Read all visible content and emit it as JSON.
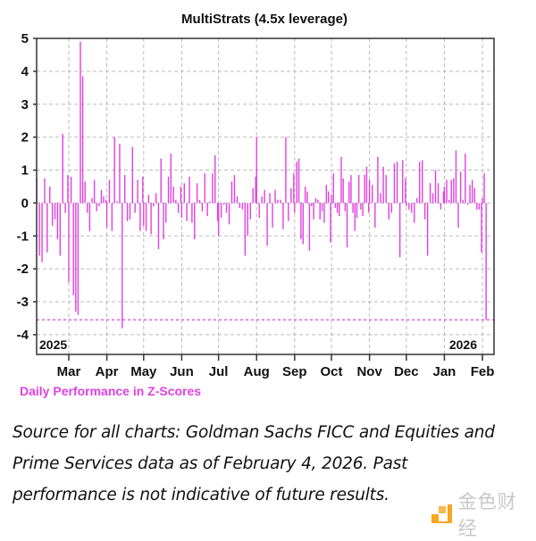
{
  "chart_data": {
    "type": "bar",
    "title": "MultiStrats (4.5x leverage)",
    "legend": "Daily Performance in Z-Scores",
    "legend_placement": "bottom-left",
    "ylim": [
      -4.6,
      5
    ],
    "y_ticks": [
      "5",
      "4",
      "3",
      "2",
      "1",
      "0",
      "-1",
      "-2",
      "-3",
      "-4"
    ],
    "x_ticks": [
      "Mar",
      "Apr",
      "May",
      "Jun",
      "Jul",
      "Aug",
      "Sep",
      "Oct",
      "Nov",
      "Dec",
      "Jan",
      "Feb"
    ],
    "year_labels": [
      "2025",
      "2026"
    ],
    "grid": true,
    "threshold_line": -3.55,
    "color": "#e040e0",
    "daily_values_by_month": [
      {
        "month": "2025-02",
        "values": [
          0.75,
          -1.6,
          -1.8,
          0.75,
          -1.5,
          0.5,
          -0.7,
          -0.5,
          -1.1,
          -1.6,
          2.1,
          -0.3,
          0.85
        ]
      },
      {
        "month": "2025-03",
        "values": [
          -2.4,
          0.8,
          -2.8,
          -3.3,
          -3.4,
          4.9,
          3.85,
          0.65,
          -0.3,
          -0.85,
          0.15,
          0.7,
          -0.25,
          -0.1,
          0.4,
          0.2,
          0.1
        ]
      },
      {
        "month": "2025-04",
        "values": [
          -0.75,
          0.7,
          -0.85,
          2.0,
          0.05,
          1.8,
          -3.8,
          0.85,
          -0.55,
          -0.5,
          1.7,
          -0.3,
          0.7,
          -0.85,
          0.8
        ]
      },
      {
        "month": "2025-05",
        "values": [
          -0.7,
          -0.85,
          0.25,
          -0.95,
          -0.1,
          0.3,
          -1.4,
          1.35,
          -1.1,
          -0.6,
          0.8,
          1.5,
          0.5,
          0.1,
          -0.3,
          0.5
        ]
      },
      {
        "month": "2025-06",
        "values": [
          -0.45,
          0.6,
          -0.55,
          0.8,
          -0.6,
          -1.1,
          0.6,
          0.1,
          -0.25,
          0.9,
          -0.4,
          0.05,
          0.9,
          1.45,
          -0.55
        ]
      },
      {
        "month": "2025-07",
        "values": [
          -1.0,
          -0.45,
          -0.05,
          -0.3,
          -0.65,
          0.65,
          0.85,
          0.2,
          -0.15,
          -0.2,
          -1.6,
          -1.0,
          -0.5,
          0.45,
          0.8
        ]
      },
      {
        "month": "2025-08",
        "values": [
          2.0,
          -0.45,
          0.2,
          0.4,
          -1.3,
          0.3,
          -0.75,
          0.4,
          0.1,
          0.1,
          -0.8,
          2.0,
          -0.55,
          0.45,
          0.9
        ]
      },
      {
        "month": "2025-09",
        "values": [
          -0.3,
          1.25,
          1.35,
          -1.1,
          -1.25,
          0.5,
          0.35,
          -1.45,
          -0.1,
          -0.5,
          0.15,
          0.1,
          -0.5,
          -0.25,
          -0.6,
          0.55,
          0.35,
          -1.2
        ]
      },
      {
        "month": "2025-10",
        "values": [
          0.25,
          0.9,
          -0.15,
          -0.3,
          -0.4,
          1.4,
          0.75,
          -0.25,
          -1.35,
          0.65,
          0.85,
          -0.3,
          -0.85,
          -0.45,
          0.85,
          -0.2,
          -0.4,
          0.85,
          1.1,
          -0.3
        ]
      },
      {
        "month": "2025-11",
        "values": [
          0.7,
          0.55,
          -0.75,
          1.4,
          0.3,
          1.1,
          0.85,
          -0.5,
          -0.3,
          1.2,
          1.25,
          -1.65,
          1.3,
          0.75
        ]
      },
      {
        "month": "2025-12",
        "values": [
          -0.1,
          -0.2,
          -0.3,
          -0.6,
          0.15,
          1.25,
          1.3,
          -0.5,
          -1.6,
          0.6,
          0.3,
          1.0,
          0.6,
          -0.2,
          0.35
        ]
      },
      {
        "month": "2026-01",
        "values": [
          0.5,
          0.7,
          0.1,
          0.7,
          0.75,
          1.6,
          -0.75,
          0.95,
          0.1,
          1.5,
          -0.05,
          0.55,
          0.7,
          0.45,
          -0.2,
          -0.2,
          -1.5
        ]
      },
      {
        "month": "2026-02",
        "values": [
          0.15,
          0.9,
          -3.55
        ]
      }
    ]
  },
  "caption": {
    "lines": [
      "Source for all charts: Goldman Sachs FICC and Equities and",
      "Prime Services data as of February 4, 2026. Past",
      "performance is not indicative of future results."
    ]
  },
  "watermark": {
    "text": "金色财经",
    "logo_color": "#f5a623"
  }
}
